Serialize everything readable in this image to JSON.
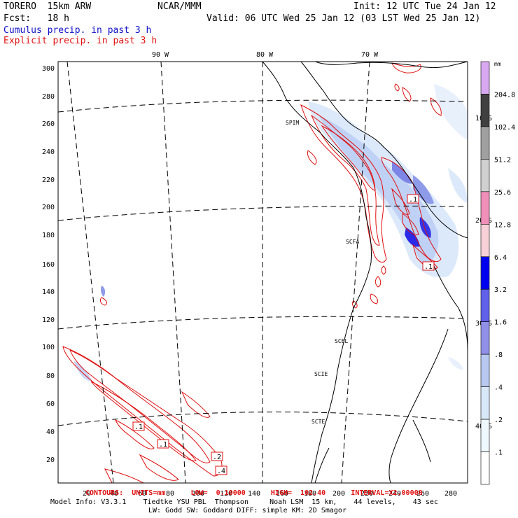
{
  "header": {
    "model": "TORERO  15km ARW",
    "org": "NCAR/MMM",
    "init": "Init: 12 UTC Tue 24 Jan 12",
    "fcst": "Fcst:   18 h",
    "valid": "Valid: 06 UTC Wed 25 Jan 12 (03 LST Wed 25 Jan 12)",
    "field1": "Cumulus precip. in past 3 h",
    "field2": "Explicit precip. in past 3 h"
  },
  "colors": {
    "field1": "#1010c8",
    "field2": "#e01010"
  },
  "map": {
    "lon_labels": [
      "90 W",
      "80 W",
      "70 W"
    ],
    "lat_labels": [
      "10 S",
      "20 S",
      "30 S",
      "40 S"
    ],
    "y_ticks": [
      "300",
      "280",
      "260",
      "240",
      "220",
      "200",
      "180",
      "160",
      "140",
      "120",
      "100",
      "80",
      "60",
      "40",
      "20"
    ],
    "x_ticks": [
      "20",
      "40",
      "60",
      "80",
      "100",
      "120",
      "140",
      "160",
      "180",
      "200",
      "220",
      "240",
      "260",
      "280"
    ],
    "stations": [
      "SPIM",
      "SCFA",
      "SCEL",
      "SCIE",
      "SCTE"
    ],
    "contour_labels": [
      ".1",
      ".1",
      ".2",
      ".4",
      ".1",
      ".1"
    ]
  },
  "colorbar": {
    "unit": "mm",
    "levels": [
      "204.8",
      "102.4",
      "51.2",
      "25.6",
      "12.8",
      "6.4",
      "3.2",
      "1.6",
      ".8",
      ".4",
      ".2",
      ".1"
    ],
    "colors": [
      "#d8a8f0",
      "#404040",
      "#a0a0a0",
      "#d0d0d0",
      "#f090b8",
      "#f8d0d8",
      "#0000f0",
      "#6060e8",
      "#9090e8",
      "#b8c8f0",
      "#d8e8f8",
      "#eef8ff",
      "#ffffff"
    ]
  },
  "footer": {
    "contours": "CONTOURS:  UNITS=mm      LOW=  0.10000      HIGH=  102.40      INTERVAL=X2.00000",
    "model_info": "Model Info: V3.3.1    Tiedtke YSU PBL  Thompson     Noah LSM  15 km,    44 levels,    43 sec",
    "model_info2": "LW: Godd SW: Goddard DIFF: simple KM: 2D Smagor"
  }
}
